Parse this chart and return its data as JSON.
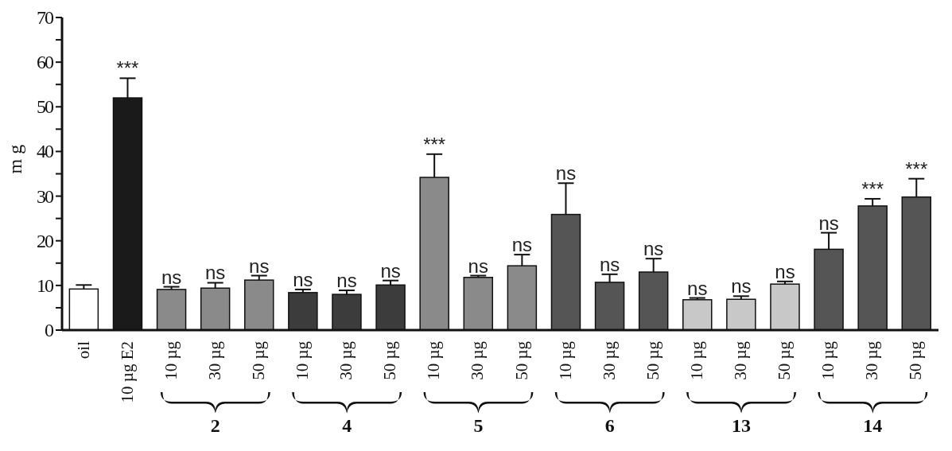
{
  "chart_data": {
    "type": "bar",
    "ylabel": "mg",
    "categories": [
      "oil",
      "10 µg E2",
      "10 µg",
      "30 µg",
      "50 µg",
      "10 µg",
      "30 µg",
      "50 µg",
      "10 µg",
      "30 µg",
      "50 µg",
      "10 µg",
      "30 µg",
      "50 µg",
      "10 µg",
      "30 µg",
      "50 µg",
      "10 µg",
      "30 µg",
      "50 µg"
    ],
    "values": [
      9.2,
      52.0,
      9.1,
      9.4,
      11.2,
      8.4,
      8.0,
      10.1,
      34.2,
      11.8,
      14.4,
      25.9,
      10.7,
      13.0,
      6.8,
      6.9,
      10.3,
      18.1,
      27.8,
      29.8
    ],
    "errors": [
      [
        9.2,
        10.1
      ],
      [
        52.0,
        56.4
      ],
      [
        9.1,
        9.7
      ],
      [
        9.4,
        10.6
      ],
      [
        11.2,
        12.2
      ],
      [
        8.4,
        9.1
      ],
      [
        8.0,
        8.9
      ],
      [
        10.1,
        11.1
      ],
      [
        34.2,
        39.4
      ],
      [
        11.8,
        12.2
      ],
      [
        14.4,
        16.9
      ],
      [
        25.9,
        32.9
      ],
      [
        10.7,
        12.5
      ],
      [
        13.0,
        16.0
      ],
      [
        6.8,
        7.2
      ],
      [
        6.9,
        7.6
      ],
      [
        10.3,
        10.9
      ],
      [
        18.1,
        21.8
      ],
      [
        27.8,
        29.4
      ],
      [
        29.8,
        33.9
      ]
    ],
    "value_labels": [
      null,
      "***",
      "ns",
      "ns",
      "ns",
      "ns",
      "ns",
      "ns",
      "***",
      "ns",
      "ns",
      "ns",
      "ns",
      "ns",
      "ns",
      "ns",
      "ns",
      "ns",
      "***",
      "***"
    ],
    "colors": [
      "#ffffff",
      "#1a1a1a",
      "#8a8a8a",
      "#8a8a8a",
      "#8a8a8a",
      "#3c3c3c",
      "#3c3c3c",
      "#3c3c3c",
      "#8a8a8a",
      "#8a8a8a",
      "#8a8a8a",
      "#555555",
      "#555555",
      "#555555",
      "#c8c8c8",
      "#c8c8c8",
      "#c8c8c8",
      "#555555",
      "#555555",
      "#555555"
    ],
    "annotations": [
      "2",
      "4",
      "5",
      "6",
      "13",
      "14"
    ],
    "ylim": [
      0,
      70
    ],
    "yticks": [
      0,
      {
        "value": 5,
        "label": null
      },
      10,
      {
        "value": 15,
        "label": null
      },
      20,
      {
        "value": 25,
        "label": null
      },
      30,
      {
        "value": 35,
        "label": null
      },
      40,
      {
        "value": 45,
        "label": null
      },
      50,
      {
        "value": 55,
        "label": null
      },
      60,
      {
        "value": 65,
        "label": null
      },
      70
    ],
    "grid": false,
    "legend": false
  }
}
